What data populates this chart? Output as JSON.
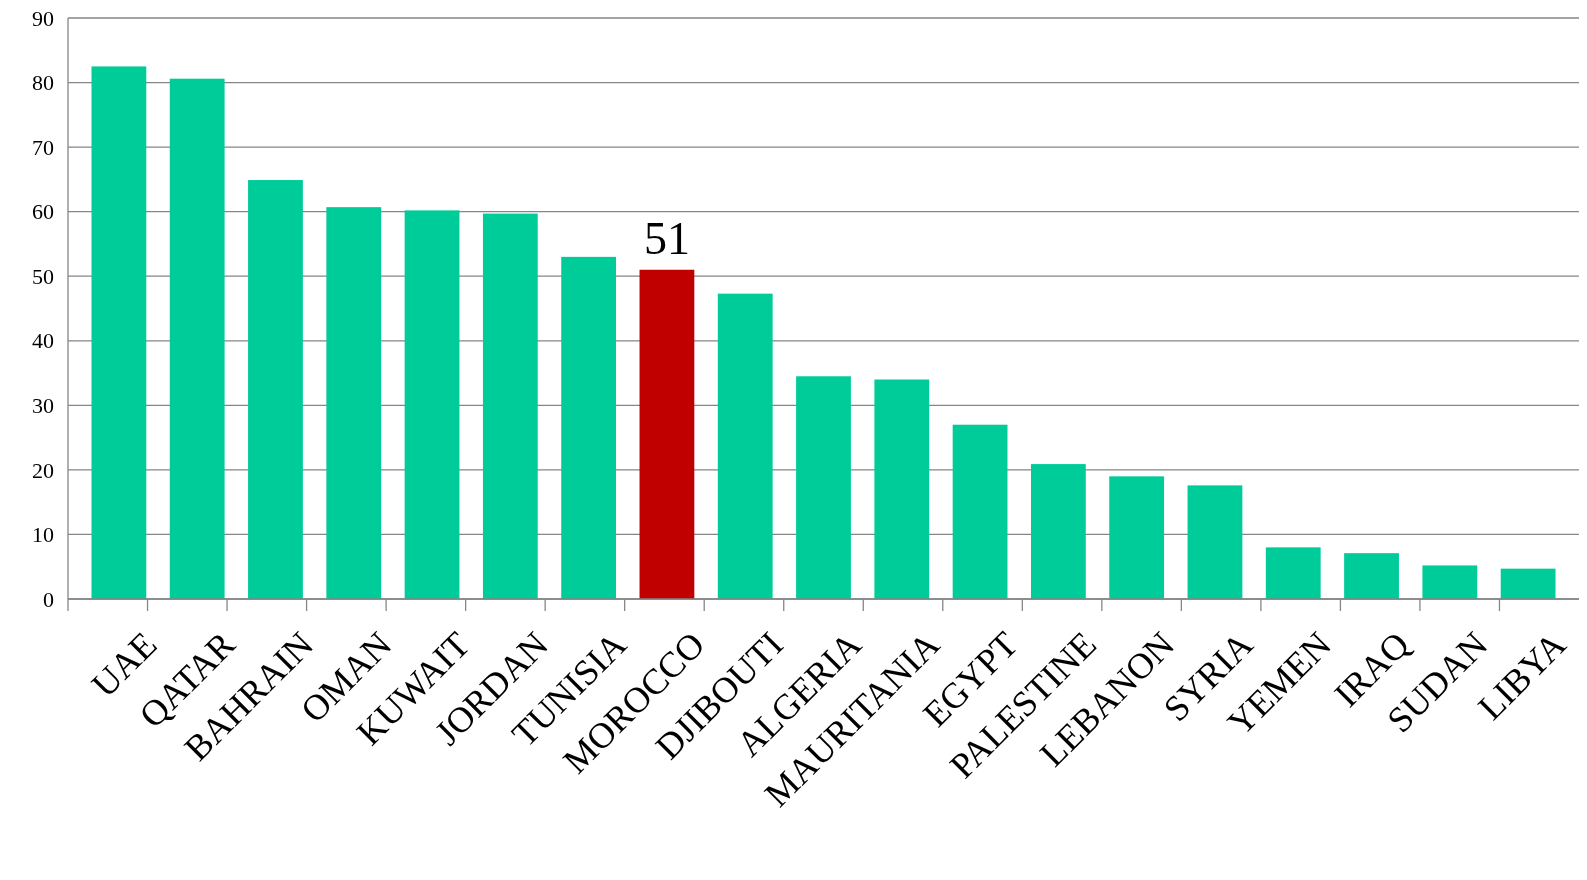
{
  "chart_data": {
    "type": "bar",
    "categories": [
      "UAE",
      "QATAR",
      "BAHRAIN",
      "OMAN",
      "KUWAIT",
      "JORDAN",
      "TUNISIA",
      "MOROCCO",
      "DJIBOUTI",
      "ALGERIA",
      "MAURITANIA",
      "EGYPT",
      "PALESTINE",
      "LEBANON",
      "SYRIA",
      "YEMEN",
      "IRAQ",
      "SUDAN",
      "LIBYA"
    ],
    "values": [
      82.5,
      80.6,
      64.9,
      60.7,
      60.2,
      59.7,
      53.0,
      51,
      47.3,
      34.5,
      34.0,
      27.0,
      20.9,
      19.0,
      17.6,
      8.0,
      7.1,
      5.2,
      4.7
    ],
    "colors": [
      "#00cc99",
      "#00cc99",
      "#00cc99",
      "#00cc99",
      "#00cc99",
      "#00cc99",
      "#00cc99",
      "#c00000",
      "#00cc99",
      "#00cc99",
      "#00cc99",
      "#00cc99",
      "#00cc99",
      "#00cc99",
      "#00cc99",
      "#00cc99",
      "#00cc99",
      "#00cc99",
      "#00cc99"
    ],
    "value_labels": [
      null,
      null,
      null,
      null,
      null,
      null,
      null,
      "51",
      null,
      null,
      null,
      null,
      null,
      null,
      null,
      null,
      null,
      null,
      null
    ],
    "ylim": [
      0,
      90
    ],
    "yticks": [
      0,
      10,
      20,
      30,
      40,
      50,
      60,
      70,
      80,
      90
    ],
    "grid": "y"
  }
}
